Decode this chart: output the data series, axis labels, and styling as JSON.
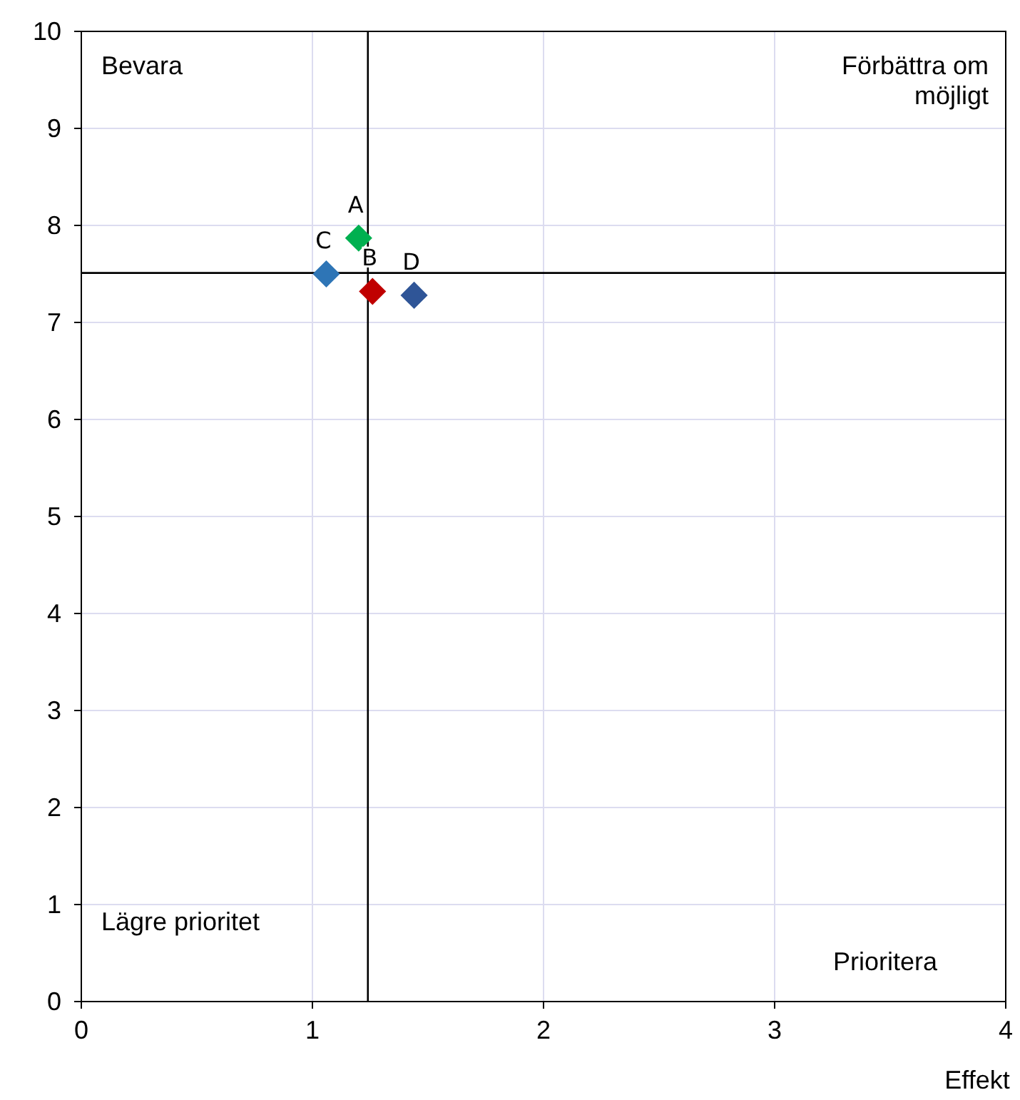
{
  "chart_data": {
    "type": "scatter",
    "xlabel": "Effekt",
    "xlim": [
      0,
      4
    ],
    "ylim": [
      0,
      10
    ],
    "xticks": [
      0,
      1,
      2,
      3,
      4
    ],
    "yticks": [
      0,
      1,
      2,
      3,
      4,
      5,
      6,
      7,
      8,
      9,
      10
    ],
    "grid": true,
    "marker": "diamond",
    "series": [
      {
        "name": "A",
        "color": "#00b050",
        "x": [
          1.2
        ],
        "values": [
          7.87
        ]
      },
      {
        "name": "B",
        "color": "#c00000",
        "x": [
          1.26
        ],
        "values": [
          7.32
        ]
      },
      {
        "name": "C",
        "color": "#2e75b6",
        "x": [
          1.06
        ],
        "values": [
          7.5
        ]
      },
      {
        "name": "D",
        "color": "#2f5597",
        "x": [
          1.44
        ],
        "values": [
          7.28
        ]
      }
    ],
    "ref_lines": [
      {
        "axis": "x",
        "value": 1.24,
        "color": "#000000"
      },
      {
        "axis": "y",
        "value": 7.51,
        "color": "#000000"
      }
    ],
    "annotations": [
      "Bevara",
      "Förbättra om\nmöjligt",
      "Lägre prioritet",
      "Prioritera"
    ]
  }
}
